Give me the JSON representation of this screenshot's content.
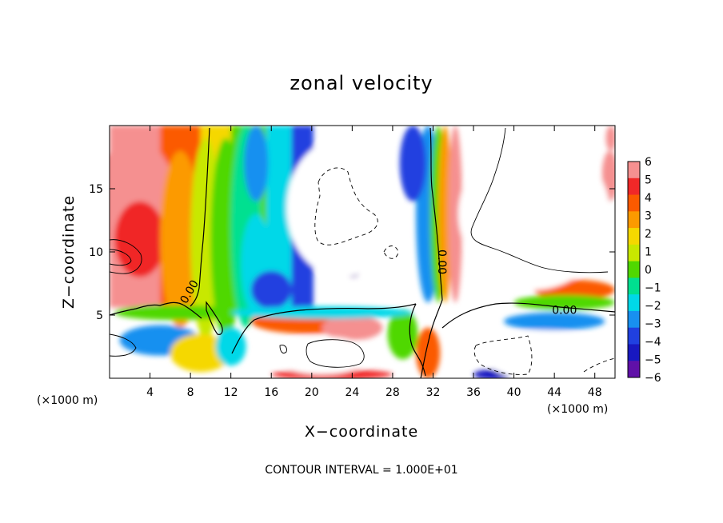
{
  "chart_data": {
    "type": "heatmap",
    "title": "zonal velocity",
    "xlabel": "X−coordinate",
    "ylabel": "Z−coordinate",
    "x_unit_left": "(×1000 m)",
    "x_unit_right": "(×1000 m)",
    "xlim": [
      0,
      50
    ],
    "ylim": [
      0,
      20
    ],
    "x_ticks": [
      4,
      8,
      12,
      16,
      20,
      24,
      28,
      32,
      36,
      40,
      44,
      48
    ],
    "y_ticks": [
      5,
      10,
      15
    ],
    "contour_interval_text": "CONTOUR INTERVAL = 1.000E+01",
    "contour_label": "0.00",
    "contour_label_positions": [
      [
        8.2,
        6.7
      ],
      [
        32.5,
        9.2
      ],
      [
        45,
        5.1
      ]
    ],
    "colorbar": {
      "levels": [
        6,
        5,
        4,
        3,
        2,
        1,
        0,
        -1,
        -2,
        -3,
        -4,
        -5,
        -6
      ],
      "level_labels": [
        "6",
        "5",
        "4",
        "3",
        "2",
        "1",
        "0",
        "−1",
        "−2",
        "−3",
        "−4",
        "−5",
        "−6"
      ],
      "colors": [
        "#f59090",
        "#f02828",
        "#fb5a00",
        "#fc9a00",
        "#f5d800",
        "#c8e800",
        "#50d800",
        "#00e090",
        "#00d8e8",
        "#1890f0",
        "#2040e0",
        "#1818c0",
        "#6010a8"
      ]
    }
  }
}
